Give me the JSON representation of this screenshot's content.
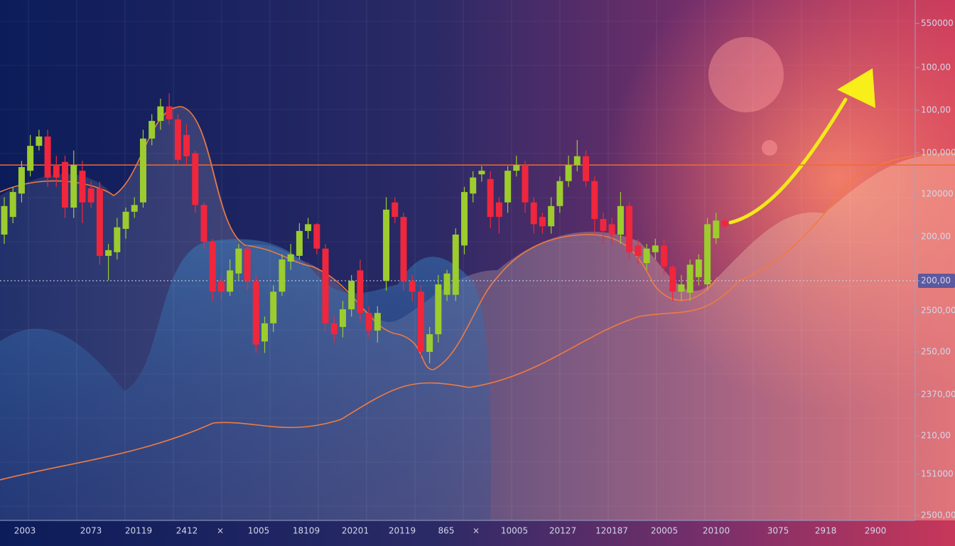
{
  "chart_data": {
    "type": "candlestick",
    "ylim": [
      0,
      100
    ],
    "reference_lines": [
      68.2,
      45.9
    ],
    "x_labels": [
      "2003",
      "2073",
      "20119",
      "2412",
      "×",
      "1005",
      "18109",
      "20201",
      "20119",
      "865",
      "×",
      "10005",
      "20127",
      "120187",
      "20005",
      "20100",
      "3075",
      "2918",
      "2900"
    ],
    "y_labels": [
      "550000",
      "100,00",
      "100,00",
      "100,000",
      "120000",
      "200,00",
      "200,00",
      "2500,00",
      "250,00",
      "2370,00",
      "210,00",
      "151000",
      "2500,00"
    ],
    "highlighted_y_label": 6,
    "up_color": "#9ccc2e",
    "down_color": "#f0263c",
    "open": [
      54.8,
      58.2,
      62.7,
      67.1,
      71.9,
      73.7,
      68.2,
      68.8,
      60,
      67.1,
      63.7,
      63.7,
      50.7,
      51.4,
      55.9,
      59.2,
      61,
      73.3,
      76.7,
      79.5,
      77,
      74,
      70.5,
      60.5,
      53.4,
      45.9,
      43.8,
      47.3,
      52.1,
      45.9,
      34.2,
      37.7,
      43.8,
      49.6,
      50.7,
      55.5,
      56.8,
      52.1,
      37.7,
      37,
      40.4,
      47.9,
      39.7,
      36.3,
      45.9,
      61,
      58.2,
      45.9,
      43.8,
      32.2,
      35.6,
      43.2,
      43.2,
      52.7,
      62.7,
      66.4,
      65.5,
      61,
      61,
      67.1,
      68.2,
      61,
      58.2,
      56.4,
      60.3,
      65.1,
      68.2,
      69.9,
      65.1,
      57.8,
      56.8,
      54.8,
      60.3,
      52.7,
      49.3,
      51.4,
      52.7,
      48.6,
      43.8,
      43.6,
      46.6,
      45.2,
      54.1,
      57.5
    ],
    "high": [
      62,
      64,
      69,
      74,
      75,
      75,
      70,
      70,
      71,
      69,
      65,
      65,
      53,
      58,
      60,
      62,
      75,
      78,
      81,
      82,
      78,
      76,
      71,
      61,
      54,
      47,
      50,
      53,
      53,
      47,
      39,
      45,
      51,
      53,
      57,
      58,
      57,
      53,
      39,
      42,
      47,
      50,
      41,
      41,
      62,
      62,
      59,
      47,
      45,
      37,
      47,
      48,
      56,
      64,
      67,
      68,
      67,
      62,
      68,
      70,
      69,
      62,
      59,
      62,
      66,
      70,
      73,
      71,
      66,
      59,
      58,
      63,
      61,
      54,
      53,
      54,
      54,
      49,
      47,
      50,
      51,
      58,
      59,
      58
    ],
    "low": [
      53,
      57,
      61,
      66,
      71,
      64,
      64,
      58,
      58,
      57,
      60,
      49,
      46,
      50,
      54,
      58,
      60,
      72,
      75,
      76,
      68,
      68,
      59,
      52,
      42,
      42,
      43,
      46,
      44,
      32,
      32,
      36,
      43,
      48,
      50,
      54,
      51,
      36,
      34,
      35,
      39,
      38,
      35,
      34,
      44,
      57,
      44,
      42,
      31,
      30,
      34,
      42,
      42,
      51,
      61,
      65,
      56,
      55,
      59,
      66,
      59,
      55,
      55,
      55,
      59,
      64,
      67,
      64,
      55,
      53,
      53,
      53,
      50,
      49,
      48,
      50,
      47,
      42,
      42,
      42,
      45,
      44,
      53,
      56
    ],
    "close": [
      60.3,
      63,
      67.8,
      71.9,
      73.7,
      65.8,
      65.8,
      60,
      68.2,
      61,
      61,
      50.7,
      51.8,
      56.2,
      59.2,
      60.5,
      73.3,
      76.7,
      79.5,
      77,
      69.2,
      69.9,
      60.5,
      53.4,
      43.8,
      43.8,
      47.9,
      52.1,
      45.9,
      33.6,
      37.7,
      43.8,
      50,
      51,
      55.5,
      56.8,
      52.1,
      37.7,
      35.6,
      40.4,
      45.9,
      39.7,
      36.3,
      39.7,
      59.6,
      58.2,
      45.9,
      43.8,
      32.2,
      35.6,
      45.2,
      47.3,
      54.8,
      63,
      65.8,
      67.1,
      58.2,
      58.2,
      67.1,
      68.2,
      61,
      56.8,
      56.4,
      60.3,
      65.1,
      68.2,
      69.9,
      65.1,
      57.8,
      55.5,
      54.8,
      60.3,
      51.4,
      50.7,
      52.1,
      52.7,
      48.6,
      43.8,
      45.2,
      49,
      50,
      56.8,
      57.5,
      56.4
    ]
  }
}
